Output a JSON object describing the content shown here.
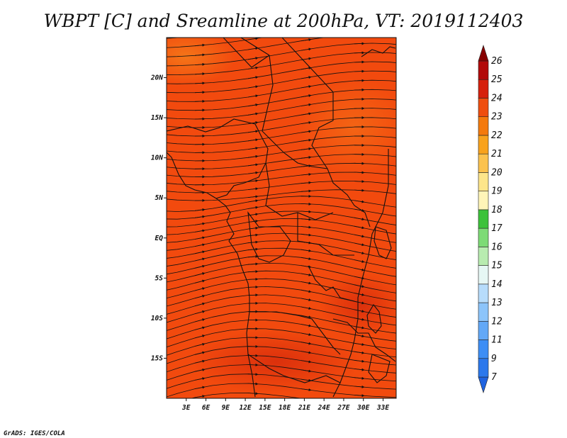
{
  "title": "WBPT [C] and Sreamline at 200hPa, VT: 2019112403",
  "credit": "GrADS: IGES/COLA",
  "map": {
    "lon_range": [
      0,
      35
    ],
    "lat_range": [
      -20,
      25
    ],
    "x_ticks": [
      "3E",
      "6E",
      "9E",
      "12E",
      "15E",
      "18E",
      "21E",
      "24E",
      "27E",
      "30E",
      "33E"
    ],
    "x_tick_values": [
      3,
      6,
      9,
      12,
      15,
      18,
      21,
      24,
      27,
      30,
      33
    ],
    "y_ticks": [
      "20N",
      "15N",
      "10N",
      "5N",
      "EQ",
      "5S",
      "10S",
      "15S"
    ],
    "y_tick_values": [
      20,
      15,
      10,
      5,
      0,
      -5,
      -10,
      -15
    ],
    "background_color": "#f24a0e",
    "streamline_color": "#111111"
  },
  "colorbar": {
    "labels": [
      "7",
      "9",
      "11",
      "12",
      "13",
      "14",
      "15",
      "16",
      "17",
      "18",
      "19",
      "20",
      "21",
      "22",
      "23",
      "24",
      "25",
      "26"
    ],
    "colors": [
      "#1f63e0",
      "#2b78ec",
      "#3d8ef5",
      "#62a8f7",
      "#8cc4fa",
      "#b7dcfb",
      "#e6f7f4",
      "#b8ecb0",
      "#7ddb76",
      "#3cc23a",
      "#fff5b8",
      "#fde58a",
      "#fbc24e",
      "#f8a21c",
      "#f47a0c",
      "#ef4e0e",
      "#d6200c",
      "#b20909",
      "#860000"
    ]
  }
}
